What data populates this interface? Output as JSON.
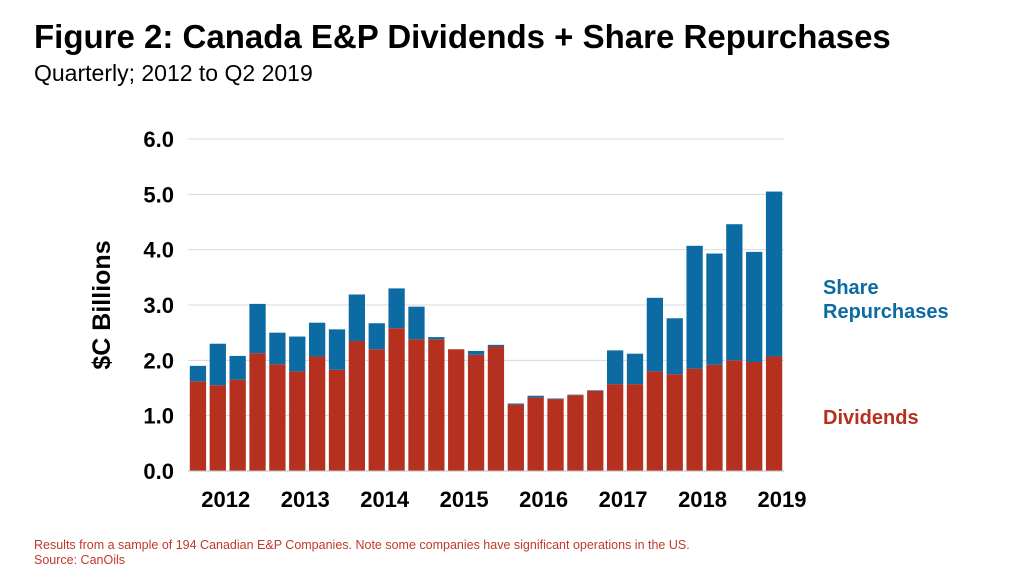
{
  "header": {
    "title": "Figure 2: Canada E&P Dividends + Share Repurchases",
    "subtitle": "Quarterly; 2012 to Q2 2019"
  },
  "footnote": {
    "line1": "Results from a sample of 194 Canadian E&P Companies. Note some companies have significant operations in the US.",
    "line2": "Source: CanOils"
  },
  "colors": {
    "dividends": "#b5301f",
    "share_repurchases": "#0d6ba3",
    "grid": "#d9d9d9"
  },
  "chart_data": {
    "type": "bar",
    "stacked": true,
    "title": "Figure 2: Canada E&P Dividends + Share Repurchases",
    "subtitle": "Quarterly; 2012 to Q2 2019",
    "ylabel": "$C Billions",
    "xlabel": "",
    "ylim": [
      0,
      6
    ],
    "yticks": [
      "0.0",
      "1.0",
      "2.0",
      "3.0",
      "4.0",
      "5.0",
      "6.0"
    ],
    "year_labels": [
      "2012",
      "2013",
      "2014",
      "2015",
      "2016",
      "2017",
      "2018",
      "2019"
    ],
    "grid": true,
    "legend_position": "right",
    "categories": [
      "Q1 2012",
      "Q2 2012",
      "Q3 2012",
      "Q4 2012",
      "Q1 2013",
      "Q2 2013",
      "Q3 2013",
      "Q4 2013",
      "Q1 2014",
      "Q2 2014",
      "Q3 2014",
      "Q4 2014",
      "Q1 2015",
      "Q2 2015",
      "Q3 2015",
      "Q4 2015",
      "Q1 2016",
      "Q2 2016",
      "Q3 2016",
      "Q4 2016",
      "Q1 2017",
      "Q2 2017",
      "Q3 2017",
      "Q4 2017",
      "Q1 2018",
      "Q2 2018",
      "Q3 2018",
      "Q4 2018",
      "Q1 2019",
      "Q2 2019"
    ],
    "series": [
      {
        "name": "Dividends",
        "values": [
          1.62,
          1.55,
          1.65,
          2.13,
          1.93,
          1.8,
          2.07,
          1.83,
          2.35,
          2.2,
          2.58,
          2.38,
          2.38,
          2.2,
          2.1,
          2.25,
          1.2,
          1.33,
          1.3,
          1.37,
          1.45,
          1.57,
          1.57,
          1.8,
          1.75,
          1.85,
          1.92,
          2.0,
          1.97,
          2.07
        ]
      },
      {
        "name": "Share Repurchases",
        "values": [
          0.28,
          0.75,
          0.43,
          0.89,
          0.57,
          0.63,
          0.61,
          0.73,
          0.84,
          0.47,
          0.72,
          0.59,
          0.04,
          0.0,
          0.07,
          0.03,
          0.02,
          0.03,
          0.01,
          0.01,
          0.01,
          0.61,
          0.55,
          1.33,
          1.01,
          2.22,
          2.01,
          2.46,
          1.99,
          2.98
        ]
      }
    ]
  }
}
